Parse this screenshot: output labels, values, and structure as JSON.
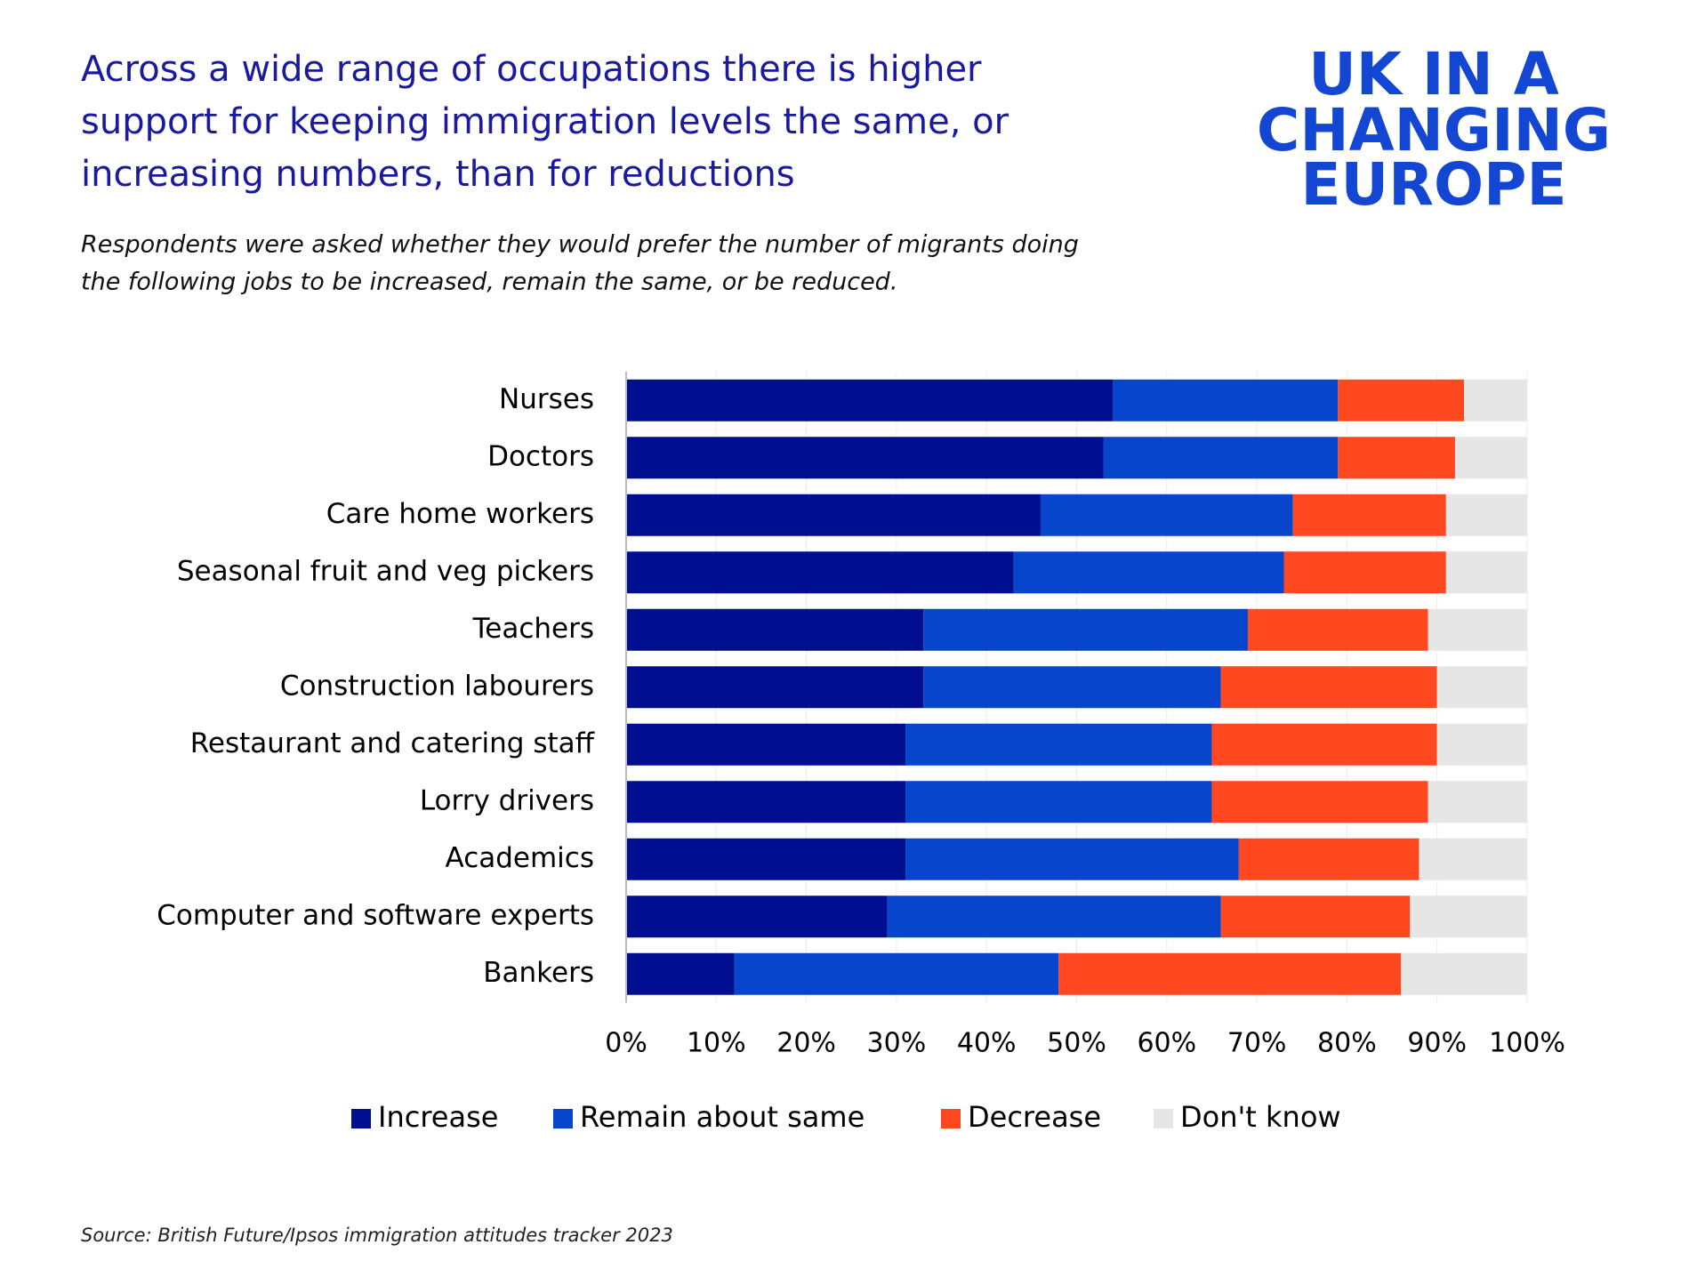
{
  "title": [
    "Across a wide range of occupations there is higher",
    "support for keeping immigration levels the same, or",
    "increasing numbers, than for reductions"
  ],
  "subtitle": [
    "Respondents were asked whether they would prefer the number of migrants doing",
    "the following jobs to be increased, remain the same, or be reduced."
  ],
  "logo": [
    "UK IN A",
    "CHANGING",
    "EUROPE"
  ],
  "source": "Source: British Future/Ipsos immigration attitudes tracker 2023",
  "chart_data": {
    "type": "stacked-bar-horizontal",
    "categories": [
      "Nurses",
      "Doctors",
      "Care home workers",
      "Seasonal fruit and veg pickers",
      "Teachers",
      "Construction labourers",
      "Restaurant and catering staff",
      "Lorry drivers",
      "Academics",
      "Computer and software experts",
      "Bankers"
    ],
    "series": [
      {
        "name": "Increase",
        "color": "#000f8f",
        "values": [
          54,
          53,
          46,
          43,
          33,
          33,
          31,
          31,
          31,
          29,
          12
        ]
      },
      {
        "name": "Remain about same",
        "color": "#0645cc",
        "values": [
          25,
          26,
          28,
          30,
          36,
          33,
          34,
          34,
          37,
          37,
          36
        ]
      },
      {
        "name": "Decrease",
        "color": "#ff4720",
        "values": [
          14,
          13,
          17,
          18,
          20,
          24,
          25,
          24,
          20,
          21,
          38
        ]
      },
      {
        "name": "Don't know",
        "color": "#e6e6e6",
        "values": [
          7,
          8,
          9,
          9,
          11,
          10,
          10,
          11,
          12,
          13,
          14
        ]
      }
    ],
    "xlim": [
      0,
      100
    ],
    "xticks": [
      {
        "value": 0,
        "label": "0%"
      },
      {
        "value": 10,
        "label": "10%"
      },
      {
        "value": 20,
        "label": "20%"
      },
      {
        "value": 30,
        "label": "30%"
      },
      {
        "value": 40,
        "label": "40%"
      },
      {
        "value": 50,
        "label": "50%"
      },
      {
        "value": 60,
        "label": "60%"
      },
      {
        "value": 70,
        "label": "70%"
      },
      {
        "value": 80,
        "label": "80%"
      },
      {
        "value": 90,
        "label": "90%"
      },
      {
        "value": 100,
        "label": "100%"
      }
    ],
    "grid": true,
    "legend": "bottom"
  }
}
